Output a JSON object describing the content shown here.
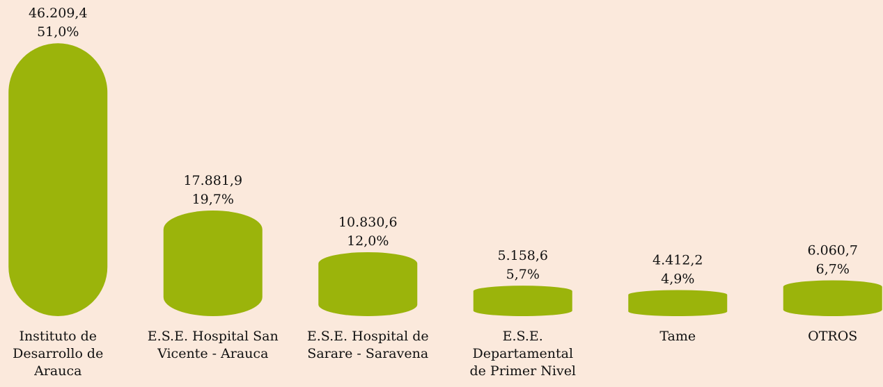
{
  "chart_data": {
    "type": "bar",
    "categories": [
      "Instituto de Desarrollo de Arauca",
      "E.S.E. Hospital San Vicente - Arauca",
      "E.S.E. Hospital de Sarare - Saravena",
      "E.S.E. Departamental de Primer Nivel",
      "Tame",
      "OTROS"
    ],
    "values": [
      46209.4,
      17881.9,
      10830.6,
      5158.6,
      4412.2,
      6060.7
    ],
    "value_labels": [
      "46.209,4",
      "17.881,9",
      "10.830,6",
      "5.158,6",
      "4.412,2",
      "6.060,7"
    ],
    "shares": [
      51.0,
      19.7,
      12.0,
      5.7,
      4.9,
      6.7
    ],
    "share_labels": [
      "51,0%",
      "19,7%",
      "12,0%",
      "5,7%",
      "4,9%",
      "6,7%"
    ],
    "color": "#9bb40b",
    "ylim": [
      0,
      50000
    ],
    "grid": false
  }
}
